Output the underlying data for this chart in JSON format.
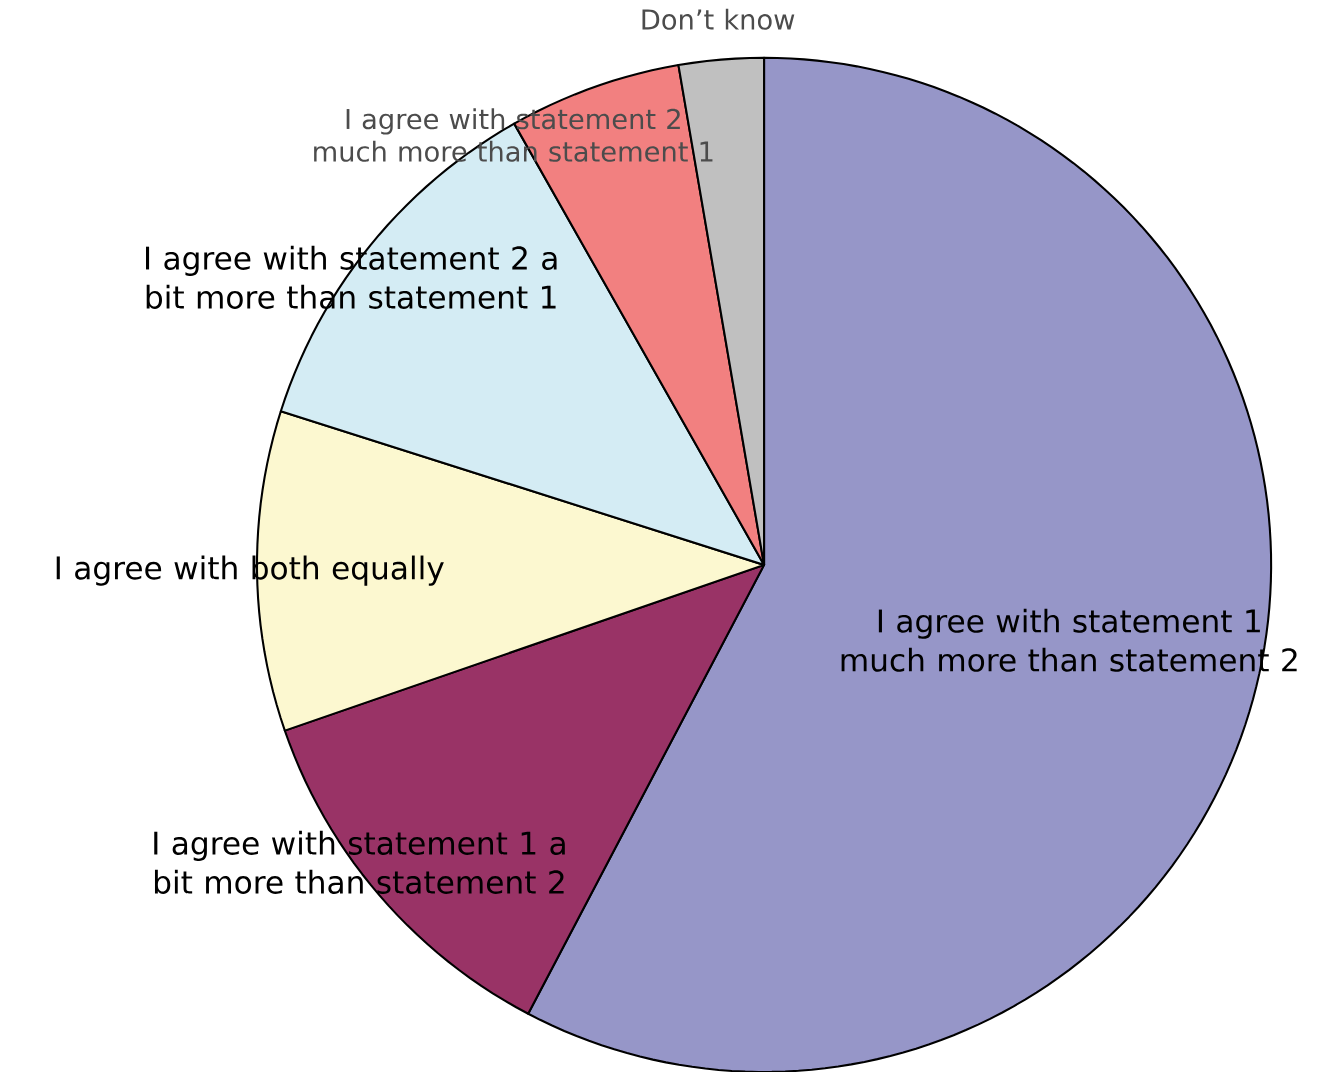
{
  "chart_data": {
    "type": "pie",
    "categories": [
      "I agree with statement 1 much more than statement 2",
      "I agree with statement 1 a bit more than statement 2",
      "I agree with both equally",
      "I agree with statement 2 a bit more than statement 1",
      "I agree with statement 2 much more than statement 1",
      "Don’t know"
    ],
    "values": [
      57.7,
      12.0,
      10.2,
      11.9,
      5.5,
      2.7
    ],
    "colors": [
      "#9696c8",
      "#993366",
      "#fcf8d0",
      "#d4ecf4",
      "#f28080",
      "#c0c0c0"
    ]
  }
}
